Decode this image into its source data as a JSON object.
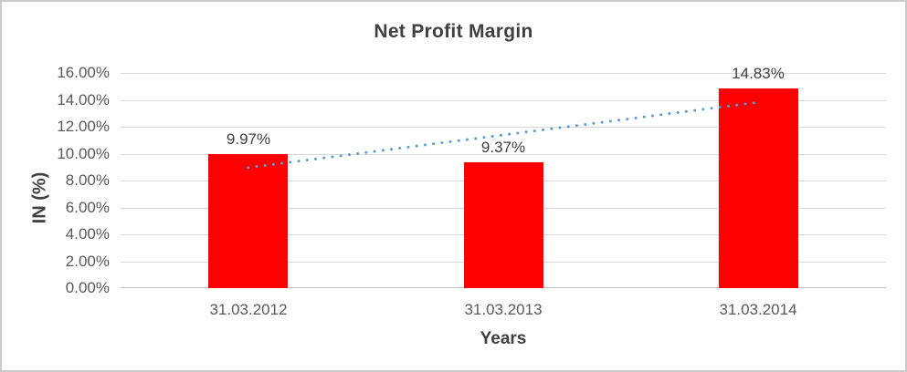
{
  "chart_data": {
    "type": "bar",
    "title": "Net Profit Margin",
    "categories": [
      "31.03.2012",
      "31.03.2013",
      "31.03.2014"
    ],
    "values": [
      9.97,
      9.37,
      14.83
    ],
    "data_labels": [
      "9.97%",
      "9.37%",
      "14.83%"
    ],
    "xlabel": "Years",
    "ylabel": "IN (%)",
    "ylim": [
      0,
      16
    ],
    "ytick_labels": [
      "0.00%",
      "2.00%",
      "4.00%",
      "6.00%",
      "8.00%",
      "10.00%",
      "12.00%",
      "14.00%",
      "16.00%"
    ],
    "grid": true,
    "legend_position": "none",
    "trendline": {
      "type": "linear",
      "style": "dotted",
      "endpoints": [
        8.96,
        13.82
      ]
    },
    "colors": {
      "bar": "#FF0000",
      "trendline": "#5B9BD5",
      "gridline": "#D9D9D9",
      "axis_line": "#BFBFBF",
      "title_text": "#404040",
      "tick_text": "#595959",
      "data_label_text": "#404040",
      "frame_border": "#CBCBCB",
      "background": "#FFFFFF"
    }
  }
}
